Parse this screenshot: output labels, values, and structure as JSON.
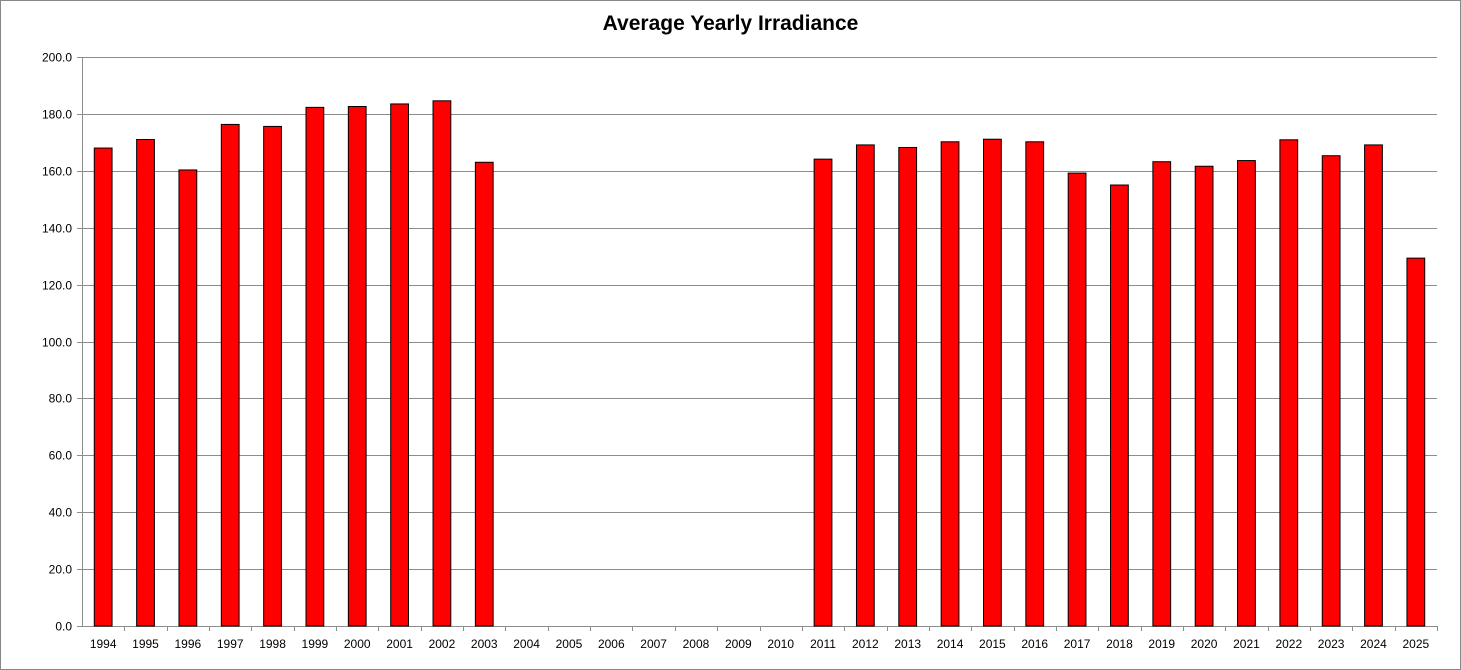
{
  "chart_data": {
    "type": "bar",
    "title": "Average Yearly Irradiance",
    "xlabel": "",
    "ylabel": "",
    "ylim": [
      0,
      200
    ],
    "ytick_step": 20,
    "ytick_format": "0.0",
    "grid": true,
    "legend": "none",
    "bar_color": "#ff0000",
    "bar_edge_color": "#000000",
    "categories": [
      "1994",
      "1995",
      "1996",
      "1997",
      "1998",
      "1999",
      "2000",
      "2001",
      "2002",
      "2003",
      "2004",
      "2005",
      "2006",
      "2007",
      "2008",
      "2009",
      "2010",
      "2011",
      "2012",
      "2013",
      "2014",
      "2015",
      "2016",
      "2017",
      "2018",
      "2019",
      "2020",
      "2021",
      "2022",
      "2023",
      "2024",
      "2025"
    ],
    "series": [
      {
        "values": [
          168.0,
          171.0,
          160.3,
          176.3,
          175.6,
          182.3,
          182.6,
          183.5,
          184.6,
          163.0,
          null,
          null,
          null,
          null,
          null,
          null,
          null,
          164.1,
          169.1,
          168.2,
          170.2,
          171.1,
          170.2,
          159.2,
          155.0,
          163.2,
          161.6,
          163.6,
          170.9,
          165.3,
          169.1,
          129.3
        ]
      }
    ]
  }
}
